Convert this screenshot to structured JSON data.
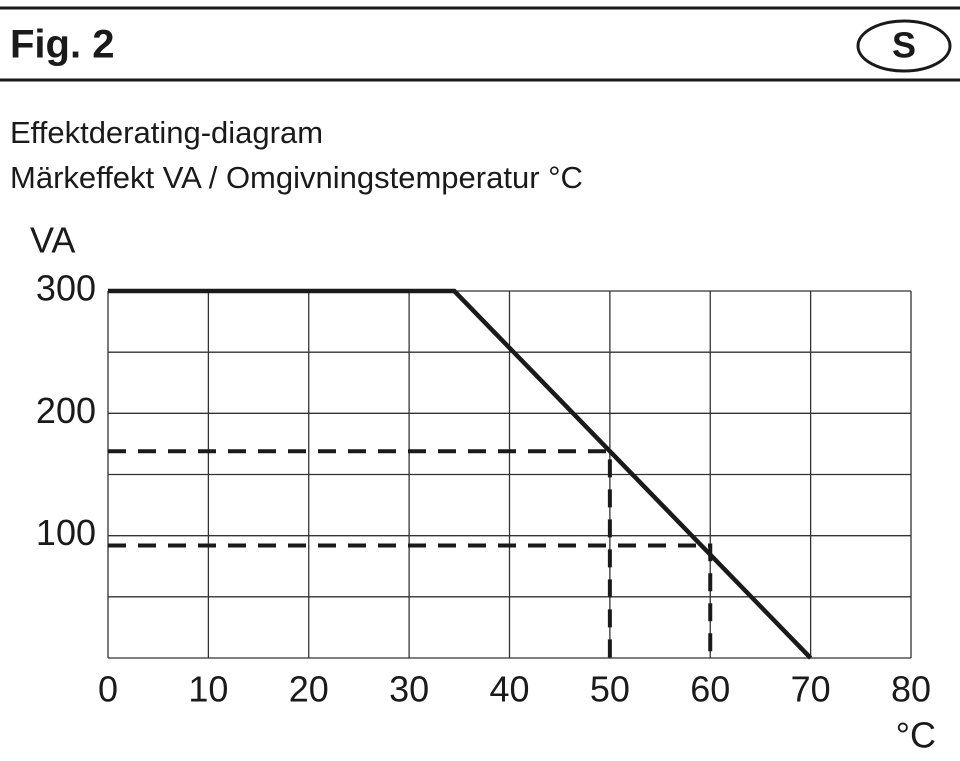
{
  "header": {
    "figure": "Fig. 2",
    "badge": "S"
  },
  "chart_data": {
    "type": "line",
    "title": "Effektderating-diagram",
    "subtitle": "Märkeffekt VA / Omgivningstemperatur °C",
    "ylabel": "VA",
    "xlabel": "°C",
    "series": [
      {
        "color": "#1a1a1a",
        "style": "solid",
        "x": [
          0,
          34.5,
          70
        ],
        "values": [
          300,
          300,
          0
        ]
      },
      {
        "color": "#1a1a1a",
        "style": "dashed",
        "x": [
          0,
          50,
          50
        ],
        "values": [
          169,
          169,
          0
        ]
      },
      {
        "color": "#1a1a1a",
        "style": "dashed",
        "x": [
          0,
          60,
          60
        ],
        "values": [
          92,
          92,
          0
        ]
      }
    ],
    "xlim": [
      0,
      80
    ],
    "ylim": [
      0,
      300
    ],
    "xticks": [
      0,
      10,
      20,
      30,
      40,
      50,
      60,
      70,
      80
    ],
    "yticks": [
      100,
      200,
      300
    ],
    "ygrid": [
      0,
      50,
      100,
      150,
      200,
      250,
      300
    ],
    "grid": true
  }
}
